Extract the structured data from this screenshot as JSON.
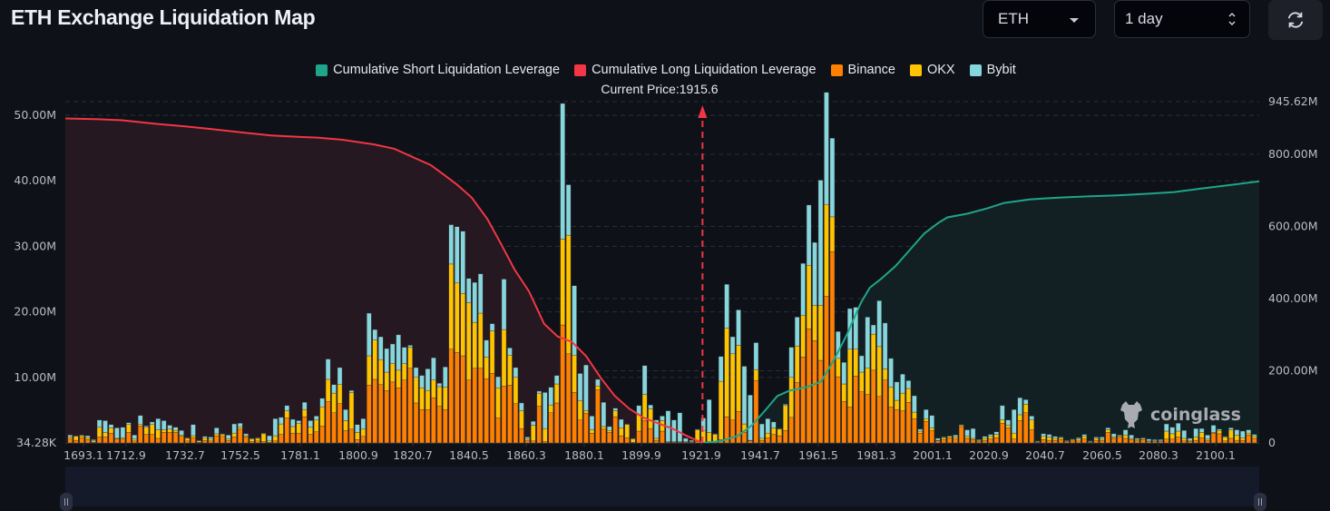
{
  "header": {
    "title": "ETH Exchange Liquidation Map",
    "coin_select": {
      "value": "ETH"
    },
    "range_select": {
      "value": "1 day"
    },
    "refresh_icon": "refresh-icon"
  },
  "watermark": "coinglass",
  "chart_data": {
    "type": "bar",
    "title": "ETH Exchange Liquidation Map",
    "annotation": "Current Price:1915.6",
    "current_price": 1915.6,
    "legend": [
      {
        "name": "Cumulative Short Liquidation Leverage",
        "color": "#1fa58a"
      },
      {
        "name": "Cumulative Long Liquidation Leverage",
        "color": "#f23645"
      },
      {
        "name": "Binance",
        "color": "#ff8000"
      },
      {
        "name": "OKX",
        "color": "#ffc400"
      },
      {
        "name": "Bybit",
        "color": "#86d6de"
      }
    ],
    "legend_position": "top-center",
    "y_left": {
      "ticks": [
        "34.28K",
        "10.00M",
        "20.00M",
        "30.00M",
        "40.00M",
        "50.00M"
      ],
      "tick_values": [
        0,
        10,
        20,
        30,
        40,
        50
      ],
      "range": [
        0,
        50
      ],
      "unit": "M"
    },
    "y_right": {
      "ticks": [
        "0",
        "200.00M",
        "400.00M",
        "600.00M",
        "800.00M",
        "945.62M"
      ],
      "tick_values": [
        0,
        200,
        400,
        600,
        800,
        945.62
      ],
      "range": [
        0,
        945.62
      ],
      "unit": "M"
    },
    "x_ticks": [
      "1693.1",
      "1712.9",
      "1732.7",
      "1752.5",
      "1781.1",
      "1800.9",
      "1820.7",
      "1840.5",
      "1860.3",
      "1880.1",
      "1899.9",
      "1921.9",
      "1941.7",
      "1961.5",
      "1981.3",
      "2001.1",
      "2020.9",
      "2040.7",
      "2060.5",
      "2080.3",
      "2100.1"
    ],
    "x_range": [
      1693.1,
      2110
    ],
    "grid": true,
    "bars_unit": "M USD (left axis), stacked [Binance, OKX, Bybit]",
    "bars": [
      [
        0.6,
        0.3,
        0.3
      ],
      [
        0.4,
        0.6,
        0.1
      ],
      [
        0.8,
        0.3,
        0.1
      ],
      [
        0.5,
        0.3,
        0.3
      ],
      [
        0.1,
        0.2,
        0.2
      ],
      [
        0.9,
        1.5,
        1.1
      ],
      [
        0.9,
        0.7,
        1.8
      ],
      [
        1.5,
        0.8,
        0.5
      ],
      [
        0.6,
        0.1,
        1.6
      ],
      [
        0.6,
        0.2,
        1.6
      ],
      [
        1.6,
        1.2,
        0.3
      ],
      [
        0.3,
        0.3,
        0.6
      ],
      [
        2.6,
        0.2,
        1.4
      ],
      [
        1.3,
        1.1,
        0.2
      ],
      [
        1.3,
        1.5,
        0.4
      ],
      [
        0.7,
        1.3,
        1.7
      ],
      [
        1.6,
        0.4,
        1.4
      ],
      [
        1.6,
        0.5,
        0.6
      ],
      [
        1.6,
        0.3,
        0.5
      ],
      [
        1.0,
        0.2,
        0.7
      ],
      [
        0.3,
        0.4,
        0.1
      ],
      [
        0.8,
        0.3,
        1.7
      ],
      [
        0.1,
        0.2,
        0.1
      ],
      [
        0.4,
        0.4,
        0.2
      ],
      [
        0.3,
        0.3,
        0.3
      ],
      [
        1.1,
        0.3,
        0.9
      ],
      [
        1.0,
        0.3,
        0.1
      ],
      [
        0.4,
        0.2,
        0.6
      ],
      [
        0.9,
        0.6,
        1.4
      ],
      [
        2.1,
        0.3,
        0.6
      ],
      [
        0.9,
        0.2,
        0.3
      ],
      [
        0.2,
        0.4,
        0.1
      ],
      [
        0.3,
        0.4,
        0.1
      ],
      [
        0.2,
        1.2,
        0.1
      ],
      [
        0.1,
        0.2,
        0.8
      ],
      [
        0.3,
        0.8,
        2.6
      ],
      [
        1.3,
        1.6,
        1.0
      ],
      [
        3.8,
        1.1,
        0.8
      ],
      [
        1.5,
        1.0,
        1.1
      ],
      [
        1.5,
        1.5,
        0.4
      ],
      [
        4.0,
        1.1,
        1.1
      ],
      [
        1.3,
        1.1,
        1.0
      ],
      [
        1.7,
        1.8,
        0.6
      ],
      [
        2.6,
        2.9,
        1.3
      ],
      [
        6.3,
        3.4,
        3.1
      ],
      [
        4.6,
        3.0,
        1.3
      ],
      [
        6.0,
        2.9,
        2.6
      ],
      [
        1.9,
        1.5,
        1.7
      ],
      [
        2.1,
        5.6,
        0.3
      ],
      [
        0.5,
        1.1,
        1.2
      ],
      [
        1.0,
        1.1,
        1.6
      ],
      [
        8.8,
        4.5,
        6.5
      ],
      [
        9.7,
        6.0,
        1.6
      ],
      [
        8.9,
        3.8,
        3.5
      ],
      [
        8.0,
        2.8,
        3.6
      ],
      [
        9.3,
        2.8,
        3.0
      ],
      [
        8.4,
        2.7,
        5.4
      ],
      [
        9.6,
        2.5,
        2.5
      ],
      [
        11.4,
        3.2,
        0.3
      ],
      [
        6.1,
        3.9,
        1.5
      ],
      [
        5.1,
        3.3,
        1.9
      ],
      [
        5.1,
        2.9,
        3.3
      ],
      [
        6.9,
        2.7,
        3.4
      ],
      [
        5.6,
        3.0,
        0.5
      ],
      [
        5.1,
        3.4,
        3.1
      ],
      [
        14.3,
        13.0,
        6.0
      ],
      [
        13.8,
        10.6,
        8.6
      ],
      [
        13.3,
        9.5,
        9.5
      ],
      [
        9.6,
        11.8,
        3.7
      ],
      [
        11.4,
        7.0,
        6.1
      ],
      [
        11.4,
        8.4,
        6.0
      ],
      [
        9.8,
        3.3,
        2.6
      ],
      [
        10.6,
        6.5,
        1.1
      ],
      [
        3.8,
        4.6,
        1.7
      ],
      [
        8.7,
        8.6,
        7.7
      ],
      [
        8.8,
        4.6,
        1.1
      ],
      [
        6.0,
        4.0,
        1.5
      ],
      [
        2.2,
        2.7,
        1.2
      ],
      [
        0.4,
        0.2,
        0.3
      ],
      [
        0.3,
        2.4,
        0.6
      ],
      [
        5.6,
        2.0,
        0.3
      ],
      [
        0.2,
        2.0,
        5.5
      ],
      [
        4.6,
        1.2,
        2.7
      ],
      [
        6.1,
        2.9,
        1.3
      ],
      [
        18.0,
        13.1,
        20.7
      ],
      [
        13.6,
        18.1,
        7.7
      ],
      [
        7.7,
        5.7,
        10.6
      ],
      [
        3.5,
        2.9,
        4.2
      ],
      [
        4.5,
        0.4,
        7.0
      ],
      [
        1.5,
        0.5,
        2.1
      ],
      [
        8.1,
        0.6,
        1.0
      ],
      [
        2.1,
        0.4,
        3.7
      ],
      [
        1.6,
        0.3,
        0.6
      ],
      [
        4.0,
        0.9,
        0.4
      ],
      [
        1.1,
        1.2,
        1.3
      ],
      [
        0.8,
        2.0,
        0.1
      ],
      [
        0.1,
        0.5,
        0.1
      ],
      [
        1.8,
        2.5,
        1.4
      ],
      [
        3.4,
        4.0,
        4.4
      ],
      [
        2.2,
        3.0,
        0.6
      ],
      [
        0.4,
        0.3,
        2.8
      ],
      [
        1.8,
        1.6,
        0.7
      ],
      [
        0.1,
        0.1,
        4.7
      ],
      [
        0.1,
        0.1,
        3.3
      ],
      [
        0.1,
        0.1,
        4.4
      ],
      [
        0.1,
        0.1,
        0.5
      ],
      [
        0.1,
        0.1,
        0.2
      ],
      [
        0.2,
        1.8,
        0.1
      ],
      [
        0.1,
        1.8,
        1.9
      ],
      [
        0.2,
        1.4,
        5.0
      ],
      [
        0.2,
        1.1,
        0.1
      ],
      [
        0.5,
        8.9,
        3.8
      ],
      [
        4.0,
        13.5,
        6.7
      ],
      [
        3.5,
        10.1,
        2.6
      ],
      [
        4.8,
        10.1,
        5.4
      ],
      [
        1.6,
        1.3,
        8.8
      ],
      [
        0.3,
        0.1,
        6.9
      ],
      [
        9.5,
        1.7,
        4.1
      ],
      [
        0.4,
        0.3,
        2.2
      ],
      [
        0.8,
        0.7,
        2.2
      ],
      [
        1.3,
        1.0,
        0.9
      ],
      [
        1.1,
        1.0,
        0.1
      ],
      [
        1.9,
        3.8,
        0.2
      ],
      [
        3.9,
        6.1,
        4.6
      ],
      [
        9.2,
        5.6,
        4.4
      ],
      [
        13.1,
        6.4,
        7.9
      ],
      [
        17.4,
        9.7,
        9.2
      ],
      [
        15.6,
        5.4,
        9.6
      ],
      [
        12.6,
        8.4,
        19.1
      ],
      [
        22.4,
        14.0,
        17.1
      ],
      [
        29.2,
        5.3,
        12.0
      ],
      [
        10.1,
        2.8,
        4.1
      ],
      [
        6.3,
        2.7,
        3.3
      ],
      [
        5.5,
        8.8,
        6.2
      ],
      [
        10.2,
        4.1,
        6.4
      ],
      [
        7.8,
        3.0,
        2.5
      ],
      [
        7.4,
        4.0,
        7.8
      ],
      [
        11.1,
        5.5,
        1.4
      ],
      [
        7.1,
        7.6,
        7.0
      ],
      [
        9.6,
        1.7,
        7.0
      ],
      [
        5.5,
        3.0,
        4.4
      ],
      [
        5.1,
        1.4,
        2.8
      ],
      [
        4.9,
        2.7,
        2.9
      ],
      [
        6.2,
        2.1,
        1.2
      ],
      [
        3.7,
        1.0,
        2.5
      ],
      [
        1.5,
        0.3,
        0.3
      ],
      [
        3.3,
        0.4,
        1.4
      ],
      [
        1.9,
        0.4,
        1.9
      ],
      [
        0.3,
        0.1,
        0.3
      ],
      [
        0.5,
        0.3,
        0.1
      ],
      [
        0.8,
        0.2,
        0.1
      ],
      [
        0.6,
        0.3,
        0.3
      ],
      [
        2.5,
        0.2,
        0.1
      ],
      [
        0.7,
        0.3,
        1.0
      ],
      [
        0.5,
        0.2,
        1.5
      ],
      [
        0.2,
        0.2,
        0.1
      ],
      [
        0.4,
        0.3,
        0.3
      ],
      [
        0.6,
        0.4,
        0.3
      ],
      [
        0.8,
        0.5,
        0.4
      ],
      [
        3.0,
        0.5,
        2.2
      ],
      [
        2.3,
        0.4,
        0.8
      ],
      [
        0.6,
        0.9,
        3.6
      ],
      [
        3.4,
        0.9,
        2.6
      ],
      [
        4.6,
        1.3,
        0.7
      ],
      [
        2.0,
        1.5,
        0.6
      ],
      [
        0.1,
        0.1,
        0.1
      ],
      [
        0.5,
        0.5,
        0.4
      ],
      [
        0.4,
        0.5,
        0.4
      ],
      [
        0.4,
        0.3,
        0.3
      ],
      [
        0.5,
        0.3,
        0.1
      ],
      [
        0.2,
        0.1,
        0.1
      ],
      [
        0.3,
        0.2,
        0.1
      ],
      [
        0.3,
        0.3,
        0.2
      ],
      [
        0.6,
        0.4,
        0.3
      ],
      [
        0.1,
        0.1,
        0.1
      ],
      [
        0.4,
        0.3,
        0.2
      ],
      [
        0.4,
        0.2,
        0.3
      ],
      [
        1.6,
        0.4,
        0.3
      ],
      [
        0.7,
        0.2,
        0.5
      ],
      [
        0.9,
        0.2,
        0.1
      ],
      [
        0.7,
        0.5,
        0.8
      ],
      [
        0.5,
        0.2,
        0.5
      ],
      [
        0.3,
        0.2,
        0.2
      ],
      [
        0.5,
        0.2,
        0.1
      ],
      [
        0.2,
        0.1,
        0.3
      ],
      [
        0.2,
        0.1,
        0.2
      ],
      [
        0.2,
        0.1,
        0.2
      ],
      [
        0.6,
        1.2,
        1.1
      ],
      [
        0.6,
        0.8,
        1.0
      ],
      [
        0.9,
        0.9,
        1.2
      ],
      [
        0.3,
        0.4,
        1.2
      ],
      [
        0.2,
        0.2,
        0.3
      ],
      [
        0.4,
        0.5,
        1.3
      ],
      [
        0.8,
        0.8,
        0.6
      ],
      [
        0.4,
        0.2,
        0.6
      ],
      [
        1.5,
        0.1,
        1.1
      ],
      [
        1.4,
        0.5,
        0.2
      ],
      [
        0.3,
        0.6,
        0.1
      ],
      [
        0.7,
        1.3,
        0.3
      ],
      [
        0.4,
        0.8,
        0.8
      ],
      [
        0.4,
        0.4,
        1.0
      ],
      [
        1.2,
        0.3,
        0.5
      ],
      [
        0.7,
        0.3,
        0.3
      ]
    ],
    "cumulative_long_unit": "M USD (right axis)",
    "cumulative_long": [
      [
        1693.1,
        899
      ],
      [
        1705,
        897
      ],
      [
        1712.9,
        894
      ],
      [
        1725,
        884
      ],
      [
        1735,
        877
      ],
      [
        1745,
        869
      ],
      [
        1755,
        860
      ],
      [
        1765,
        852
      ],
      [
        1775,
        848
      ],
      [
        1781.1,
        846
      ],
      [
        1790,
        840
      ],
      [
        1800.9,
        827
      ],
      [
        1808,
        815
      ],
      [
        1815,
        790
      ],
      [
        1820.7,
        770
      ],
      [
        1825,
        745
      ],
      [
        1830,
        715
      ],
      [
        1835,
        680
      ],
      [
        1840.5,
        620
      ],
      [
        1845,
        555
      ],
      [
        1850,
        480
      ],
      [
        1855,
        420
      ],
      [
        1860.3,
        330
      ],
      [
        1865,
        295
      ],
      [
        1870,
        280
      ],
      [
        1875,
        240
      ],
      [
        1880.1,
        180
      ],
      [
        1885,
        130
      ],
      [
        1890,
        95
      ],
      [
        1895,
        70
      ],
      [
        1899.9,
        55
      ],
      [
        1905,
        40
      ],
      [
        1910,
        20
      ],
      [
        1915.6,
        0
      ]
    ],
    "cumulative_short": [
      [
        1915.6,
        0
      ],
      [
        1921.9,
        5
      ],
      [
        1928,
        20
      ],
      [
        1933,
        50
      ],
      [
        1938,
        95
      ],
      [
        1941.7,
        130
      ],
      [
        1946,
        145
      ],
      [
        1952,
        155
      ],
      [
        1957,
        170
      ],
      [
        1961.5,
        230
      ],
      [
        1966,
        300
      ],
      [
        1971,
        390
      ],
      [
        1974,
        430
      ],
      [
        1978,
        455
      ],
      [
        1983,
        490
      ],
      [
        1988,
        535
      ],
      [
        1993,
        580
      ],
      [
        1998,
        610
      ],
      [
        2001.1,
        625
      ],
      [
        2008,
        635
      ],
      [
        2015,
        650
      ],
      [
        2020.9,
        665
      ],
      [
        2030,
        675
      ],
      [
        2040.7,
        680
      ],
      [
        2050,
        683
      ],
      [
        2060.5,
        686
      ],
      [
        2070,
        690
      ],
      [
        2080.3,
        695
      ],
      [
        2090,
        705
      ],
      [
        2100.1,
        715
      ],
      [
        2110,
        725
      ]
    ]
  }
}
